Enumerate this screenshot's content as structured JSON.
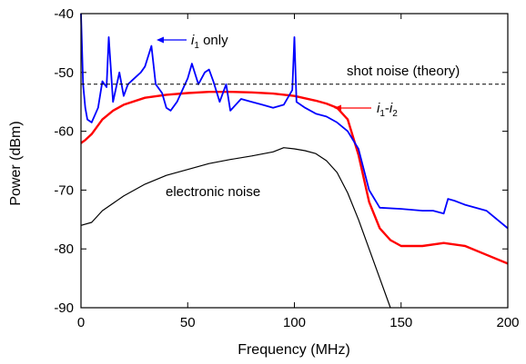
{
  "chart_data": {
    "type": "line",
    "xlabel": "Frequency (MHz)",
    "ylabel": "Power (dBm)",
    "xlim": [
      0,
      200
    ],
    "ylim": [
      -90,
      -40
    ],
    "xticks": [
      0,
      50,
      100,
      150,
      200
    ],
    "yticks": [
      -90,
      -80,
      -70,
      -60,
      -50,
      -40
    ],
    "grid": false,
    "series": [
      {
        "key": "electronic",
        "color": "#000000",
        "x": [
          0,
          5,
          10,
          20,
          30,
          40,
          50,
          60,
          70,
          80,
          90,
          95,
          100,
          105,
          110,
          115,
          120,
          125,
          130,
          135,
          140,
          145
        ],
        "y": [
          -76,
          -75.5,
          -73.5,
          -71,
          -69,
          -67.5,
          -66.5,
          -65.5,
          -64.8,
          -64.2,
          -63.5,
          -62.8,
          -63,
          -63.3,
          -63.8,
          -65,
          -67,
          -70.5,
          -75,
          -80,
          -85,
          -90
        ]
      },
      {
        "key": "i1i2",
        "color": "#ff0000",
        "x": [
          0,
          2,
          5,
          10,
          15,
          20,
          30,
          40,
          50,
          60,
          70,
          80,
          90,
          100,
          110,
          115,
          120,
          125,
          130,
          135,
          140,
          145,
          150,
          160,
          170,
          180,
          190,
          200
        ],
        "y": [
          -62,
          -61.5,
          -60.5,
          -58,
          -56.5,
          -55.5,
          -54.3,
          -53.8,
          -53.5,
          -53.3,
          -53.3,
          -53.4,
          -53.6,
          -54,
          -54.8,
          -55.3,
          -56,
          -58,
          -64,
          -72,
          -76.5,
          -78.5,
          -79.5,
          -79.5,
          -79,
          -79.5,
          -81,
          -82.5
        ]
      },
      {
        "key": "i1only",
        "color": "#0000ff",
        "x": [
          0,
          1,
          2,
          3,
          5,
          8,
          10,
          12,
          13,
          15,
          18,
          20,
          22,
          25,
          28,
          30,
          33,
          35,
          38,
          40,
          42,
          45,
          50,
          52,
          55,
          58,
          60,
          62,
          65,
          68,
          70,
          75,
          80,
          85,
          90,
          95,
          99,
          100,
          101,
          105,
          110,
          115,
          120,
          125,
          130,
          135,
          140,
          150,
          160,
          165,
          170,
          172,
          175,
          180,
          190,
          200
        ],
        "y": [
          -40,
          -52,
          -56,
          -58,
          -58.5,
          -56,
          -51.5,
          -52.5,
          -44,
          -55,
          -50,
          -54,
          -52,
          -51,
          -50,
          -49,
          -45.5,
          -52,
          -53.5,
          -56,
          -56.5,
          -55,
          -51,
          -48.5,
          -52,
          -50,
          -49.5,
          -51.5,
          -55,
          -52,
          -56.5,
          -54.5,
          -55,
          -55.5,
          -56,
          -55.5,
          -53,
          -44,
          -55,
          -56,
          -57,
          -57.5,
          -58.5,
          -60,
          -63,
          -70,
          -73,
          -73.2,
          -73.5,
          -73.5,
          -74,
          -71.5,
          -71.8,
          -72.5,
          -73.5,
          -76.5
        ]
      }
    ],
    "annotations": {
      "shot_noise": {
        "label": "shot noise (theory)",
        "y": -52
      },
      "i1only": {
        "italic": "i",
        "sub": "1",
        "rest": " only"
      },
      "i1i2": {
        "italic1": "i",
        "sub1": "1",
        "mid": "-",
        "italic2": "i",
        "sub2": "2"
      },
      "electronic": {
        "label": "electronic noise"
      }
    }
  }
}
